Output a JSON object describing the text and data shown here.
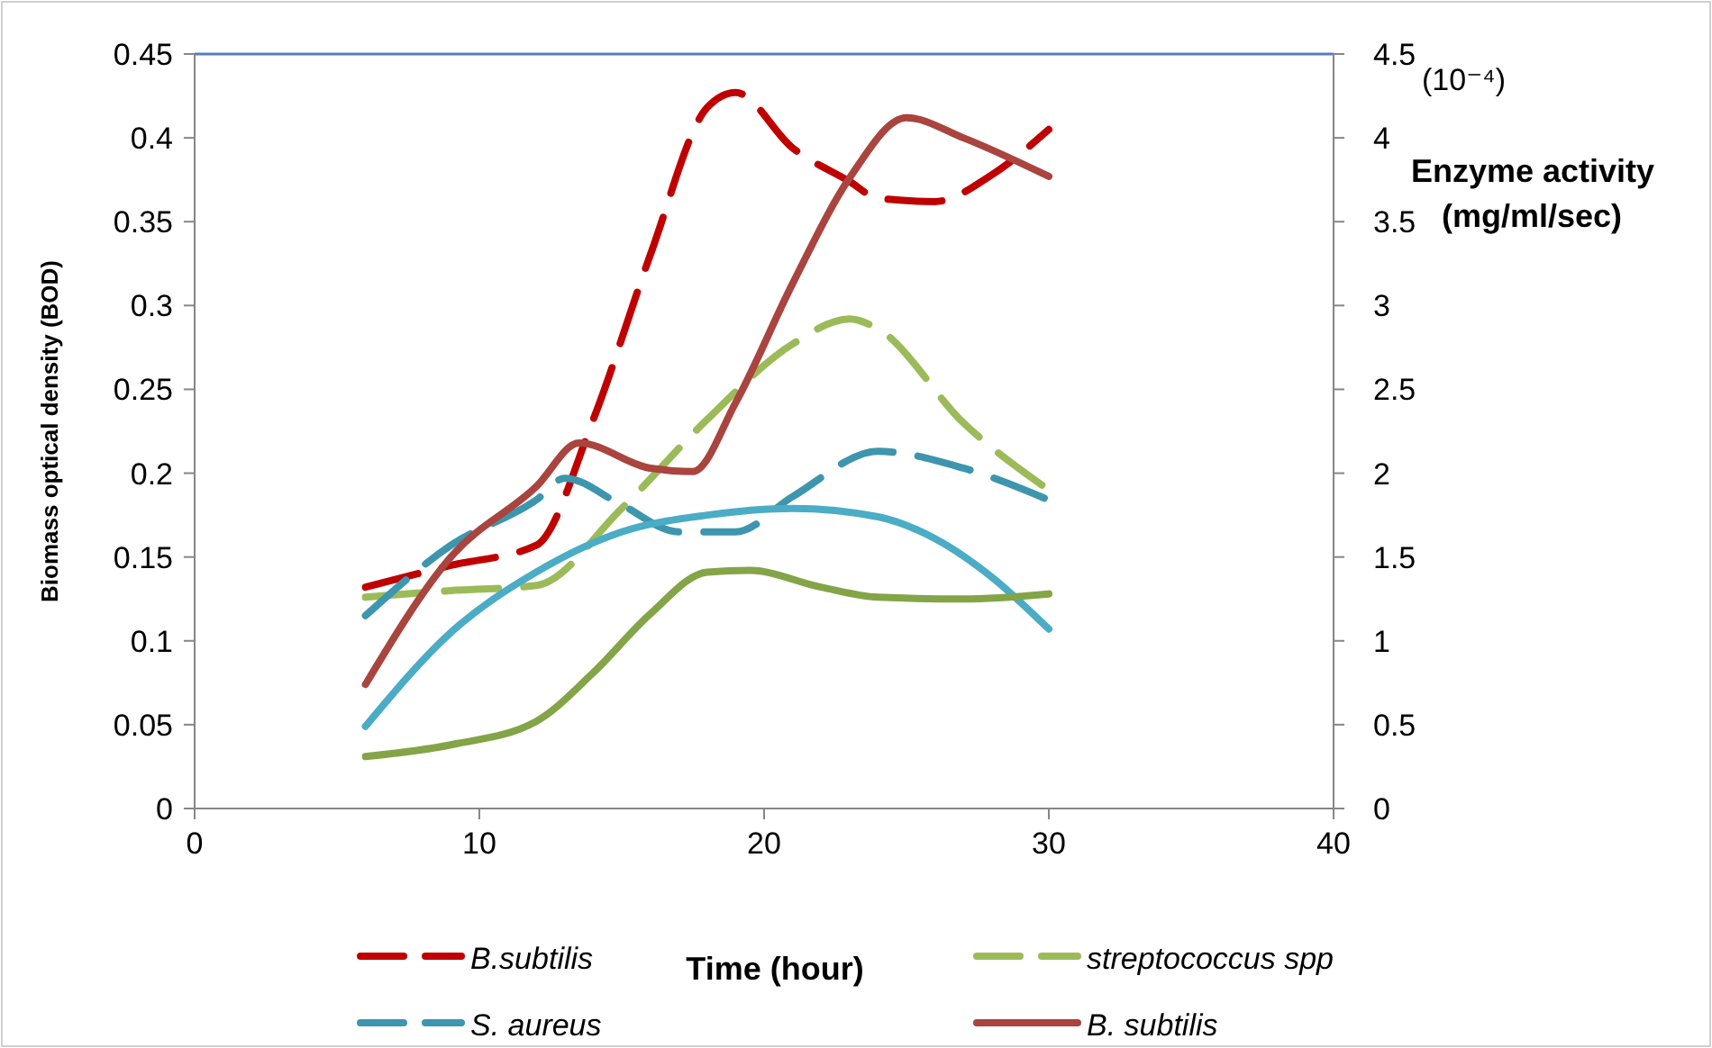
{
  "chart_data": {
    "type": "line",
    "xlabel": "Time (hour)",
    "ylabel": "Biomass optical density (BOD)",
    "y2label": "Enzyme activity (mg/ml/sec)",
    "annotations": [
      "(10⁻⁴)"
    ],
    "xlim": [
      0,
      40
    ],
    "xticks": [
      0,
      10,
      20,
      30,
      40
    ],
    "ylim": [
      0,
      0.45
    ],
    "yticks": [
      0,
      0.05,
      0.1,
      0.15,
      0.2,
      0.25,
      0.3,
      0.35,
      0.4,
      0.45
    ],
    "y2lim": [
      0,
      4.5
    ],
    "y2ticks": [
      0,
      0.5,
      1,
      1.5,
      2,
      2.5,
      3,
      3.5,
      4,
      4.5
    ],
    "grid": false,
    "legend": "bottom",
    "marker": "none",
    "series": [
      {
        "name": "B.subtilis",
        "color": "#c00000",
        "line_style": "dashed",
        "x": [
          6,
          9,
          12,
          14,
          16,
          18,
          19,
          21,
          23,
          24,
          26,
          28,
          30
        ],
        "values": [
          0.132,
          0.145,
          0.157,
          0.232,
          0.33,
          0.418,
          0.427,
          0.394,
          0.374,
          0.364,
          0.362,
          0.378,
          0.405
        ]
      },
      {
        "name": "streptococcus spp",
        "color": "#9bbb59",
        "line_style": "dashed",
        "x": [
          6,
          9,
          12,
          15,
          18,
          21,
          23,
          24,
          27,
          30
        ],
        "values": [
          0.126,
          0.13,
          0.133,
          0.179,
          0.232,
          0.277,
          0.292,
          0.286,
          0.23,
          0.19
        ]
      },
      {
        "name": "S. aureus",
        "color": "#3d96ae",
        "line_style": "dashed",
        "x": [
          6,
          9,
          12,
          13,
          15,
          17,
          19,
          21,
          24,
          27,
          30
        ],
        "values": [
          0.115,
          0.157,
          0.184,
          0.197,
          0.181,
          0.165,
          0.165,
          0.186,
          0.213,
          0.203,
          0.184
        ]
      },
      {
        "name": "B. subtilis",
        "color": "#a9443f",
        "line_style": "solid",
        "axis": "y2",
        "x": [
          6,
          9,
          12,
          13.5,
          16,
          17.5,
          19,
          21,
          23,
          25,
          27,
          30
        ],
        "values": [
          0.74,
          1.5,
          1.92,
          2.18,
          2.03,
          2.01,
          2.42,
          3.13,
          3.76,
          4.12,
          4.0,
          3.77
        ]
      },
      {
        "color": "#4bacc6",
        "line_style": "solid",
        "axis": "y2",
        "x": [
          6,
          9,
          12,
          15,
          18,
          21,
          24,
          26,
          28,
          30
        ],
        "values": [
          0.49,
          1.05,
          1.41,
          1.65,
          1.75,
          1.79,
          1.74,
          1.61,
          1.38,
          1.07
        ]
      },
      {
        "color": "#84a448",
        "line_style": "solid",
        "axis": "y2",
        "x": [
          6,
          9,
          12,
          14,
          16,
          18,
          19.5,
          22,
          24,
          27,
          30
        ],
        "values": [
          0.31,
          0.38,
          0.52,
          0.81,
          1.16,
          1.41,
          1.42,
          1.32,
          1.26,
          1.25,
          1.28
        ]
      }
    ]
  }
}
